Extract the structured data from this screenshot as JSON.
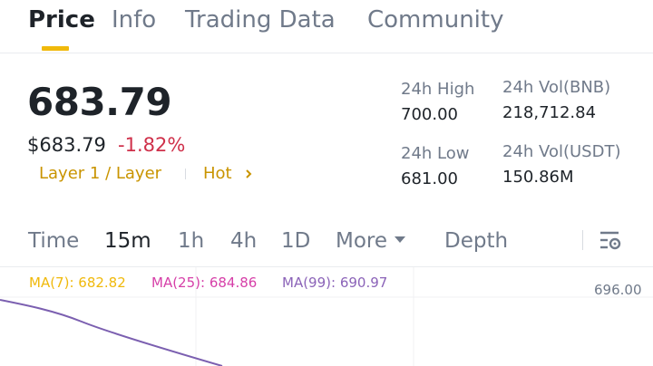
{
  "tabs": [
    {
      "label": "Price",
      "active": true
    },
    {
      "label": "Info"
    },
    {
      "label": "Trading Data"
    },
    {
      "label": "Community"
    }
  ],
  "price": {
    "last": "683.79",
    "usd": "$683.79",
    "change": "-1.82%",
    "tags": [
      "Layer 1 / Layer",
      "Hot"
    ]
  },
  "stats": {
    "high_label": "24h High",
    "high_value": "700.00",
    "low_label": "24h Low",
    "low_value": "681.00",
    "vol_base_label": "24h Vol(BNB)",
    "vol_base_value": "218,712.84",
    "vol_quote_label": "24h Vol(USDT)",
    "vol_quote_value": "150.86M"
  },
  "intervals": {
    "items": [
      "Time",
      "15m",
      "1h",
      "4h",
      "1D",
      "More"
    ],
    "active": "15m",
    "depth": "Depth"
  },
  "chart": {
    "ma": [
      "MA(7): 682.82",
      "MA(25): 684.86",
      "MA(99): 690.97"
    ],
    "ma_colors": [
      "#f0b90b",
      "#d63fa8",
      "#8b63b8"
    ],
    "y_axis_label": "696.00",
    "line_color": "#7b5fb0"
  },
  "colors": {
    "accent": "#f0b90b",
    "down": "#cf304a",
    "tag": "#c99400"
  }
}
